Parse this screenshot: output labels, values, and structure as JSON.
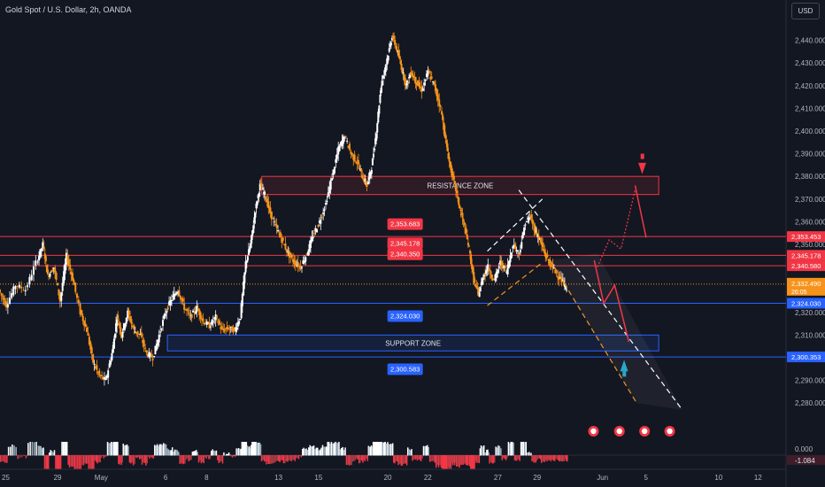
{
  "header": {
    "title": "Gold Spot / U.S. Dollar, 2h, OANDA",
    "currency_button": "USD"
  },
  "chart_data": {
    "type": "candlestick",
    "symbol": "Gold Spot / U.S. Dollar",
    "interval": "2h",
    "source": "OANDA",
    "ylim": [
      2275,
      2450
    ],
    "y_ticks": [
      2280,
      2290,
      2300,
      2310,
      2320,
      2330,
      2340,
      2350,
      2360,
      2370,
      2380,
      2390,
      2400,
      2410,
      2420,
      2430,
      2440
    ],
    "y_tick_labels": [
      "2,280.000",
      "2,290.000",
      "2,300.000",
      "2,310.000",
      "2,320.000",
      "2,330.000",
      "2,340.000",
      "2,350.000",
      "2,360.000",
      "2,370.000",
      "2,380.000",
      "2,390.000",
      "2,400.000",
      "2,410.000",
      "2,420.000",
      "2,430.000",
      "2,440.000"
    ],
    "x_ticks": [
      {
        "label": "25",
        "pos": 0.0
      },
      {
        "label": "29",
        "pos": 0.066
      },
      {
        "label": "May",
        "pos": 0.118
      },
      {
        "label": "6",
        "pos": 0.206
      },
      {
        "label": "8",
        "pos": 0.258
      },
      {
        "label": "13",
        "pos": 0.347
      },
      {
        "label": "15",
        "pos": 0.398
      },
      {
        "label": "20",
        "pos": 0.486
      },
      {
        "label": "22",
        "pos": 0.537
      },
      {
        "label": "27",
        "pos": 0.626
      },
      {
        "label": "29",
        "pos": 0.676
      },
      {
        "label": "Jun",
        "pos": 0.757
      },
      {
        "label": "5",
        "pos": 0.817
      },
      {
        "label": "10",
        "pos": 0.907
      },
      {
        "label": "12",
        "pos": 0.957
      }
    ],
    "price_path": [
      [
        0.0,
        2330
      ],
      [
        0.01,
        2323
      ],
      [
        0.022,
        2332
      ],
      [
        0.035,
        2330
      ],
      [
        0.048,
        2342
      ],
      [
        0.056,
        2350
      ],
      [
        0.062,
        2336
      ],
      [
        0.07,
        2340
      ],
      [
        0.078,
        2325
      ],
      [
        0.086,
        2345
      ],
      [
        0.094,
        2335
      ],
      [
        0.104,
        2320
      ],
      [
        0.112,
        2312
      ],
      [
        0.12,
        2298
      ],
      [
        0.128,
        2292
      ],
      [
        0.136,
        2290
      ],
      [
        0.144,
        2302
      ],
      [
        0.15,
        2318
      ],
      [
        0.156,
        2310
      ],
      [
        0.164,
        2320
      ],
      [
        0.172,
        2312
      ],
      [
        0.18,
        2310
      ],
      [
        0.188,
        2302
      ],
      [
        0.196,
        2300
      ],
      [
        0.204,
        2310
      ],
      [
        0.212,
        2320
      ],
      [
        0.22,
        2326
      ],
      [
        0.228,
        2330
      ],
      [
        0.236,
        2322
      ],
      [
        0.244,
        2318
      ],
      [
        0.252,
        2322
      ],
      [
        0.26,
        2316
      ],
      [
        0.268,
        2314
      ],
      [
        0.276,
        2318
      ],
      [
        0.284,
        2312
      ],
      [
        0.292,
        2313
      ],
      [
        0.3,
        2312
      ],
      [
        0.307,
        2318
      ],
      [
        0.314,
        2342
      ],
      [
        0.32,
        2350
      ],
      [
        0.326,
        2365
      ],
      [
        0.332,
        2376
      ],
      [
        0.338,
        2372
      ],
      [
        0.344,
        2365
      ],
      [
        0.352,
        2358
      ],
      [
        0.36,
        2352
      ],
      [
        0.368,
        2346
      ],
      [
        0.376,
        2342
      ],
      [
        0.384,
        2340
      ],
      [
        0.392,
        2346
      ],
      [
        0.4,
        2354
      ],
      [
        0.408,
        2360
      ],
      [
        0.416,
        2368
      ],
      [
        0.424,
        2380
      ],
      [
        0.432,
        2392
      ],
      [
        0.44,
        2398
      ],
      [
        0.448,
        2390
      ],
      [
        0.456,
        2386
      ],
      [
        0.462,
        2380
      ],
      [
        0.468,
        2376
      ],
      [
        0.474,
        2384
      ],
      [
        0.48,
        2400
      ],
      [
        0.486,
        2420
      ],
      [
        0.494,
        2432
      ],
      [
        0.5,
        2442
      ],
      [
        0.506,
        2436
      ],
      [
        0.512,
        2428
      ],
      [
        0.518,
        2420
      ],
      [
        0.524,
        2426
      ],
      [
        0.53,
        2422
      ],
      [
        0.538,
        2418
      ],
      [
        0.546,
        2426
      ],
      [
        0.554,
        2420
      ],
      [
        0.562,
        2410
      ],
      [
        0.568,
        2396
      ],
      [
        0.574,
        2384
      ],
      [
        0.58,
        2376
      ],
      [
        0.586,
        2366
      ],
      [
        0.592,
        2358
      ],
      [
        0.598,
        2348
      ],
      [
        0.604,
        2334
      ],
      [
        0.61,
        2328
      ],
      [
        0.616,
        2336
      ],
      [
        0.622,
        2340
      ],
      [
        0.63,
        2334
      ],
      [
        0.638,
        2342
      ],
      [
        0.646,
        2338
      ],
      [
        0.654,
        2350
      ],
      [
        0.662,
        2346
      ],
      [
        0.67,
        2360
      ],
      [
        0.676,
        2362
      ],
      [
        0.682,
        2356
      ],
      [
        0.688,
        2352
      ],
      [
        0.694,
        2346
      ],
      [
        0.7,
        2342
      ],
      [
        0.708,
        2338
      ],
      [
        0.716,
        2334
      ],
      [
        0.722,
        2330
      ]
    ],
    "volume_bars": "decorative oscillator histogram beneath price",
    "horizontal_levels": [
      {
        "label": "2,353.453",
        "value": 2353.453,
        "color": "#f23645"
      },
      {
        "label": "2,345.178",
        "value": 2345.178,
        "color": "#f23645"
      },
      {
        "label": "2,340.580",
        "value": 2340.58,
        "color": "#f23645"
      },
      {
        "label": "2,324.030",
        "value": 2324.03,
        "color": "#2962ff"
      },
      {
        "label": "2,300.353",
        "value": 2300.353,
        "color": "#2962ff"
      }
    ],
    "current_price": {
      "label": "2,332.490",
      "countdown": "26:05",
      "value": 2332.49,
      "color": "#f7931a"
    },
    "indicator_value": {
      "label": "-1.084",
      "zero_label": "0.000"
    },
    "zones": [
      {
        "label": "RESISTANCE ZONE",
        "from": 2372,
        "to": 2380,
        "x_start": 0.333,
        "x_end": 0.838,
        "color": "#f23645"
      },
      {
        "label": "SUPPORT ZONE",
        "from": 2303,
        "to": 2310,
        "x_start": 0.213,
        "x_end": 0.838,
        "color": "#2962ff"
      }
    ],
    "level_tags": [
      {
        "label": "2,353.683",
        "value": 2353.683,
        "x": 0.512,
        "color": "#f23645"
      },
      {
        "label": "2,345.178",
        "value": 2345.178,
        "x": 0.512,
        "color": "#f23645"
      },
      {
        "label": "2,340.350",
        "value": 2340.35,
        "x": 0.512,
        "color": "#f23645"
      },
      {
        "label": "2,324.030",
        "value": 2324.03,
        "x": 0.512,
        "color": "#2962ff"
      },
      {
        "label": "2,300.583",
        "value": 2300.583,
        "x": 0.512,
        "color": "#2962ff"
      }
    ],
    "colors": {
      "background": "#131722",
      "up": "#ffffff",
      "down": "#f7931a",
      "resistance": "#f23645",
      "support": "#2962ff",
      "channel_upper": "#ffffff",
      "channel_lower": "#f7931a"
    }
  }
}
